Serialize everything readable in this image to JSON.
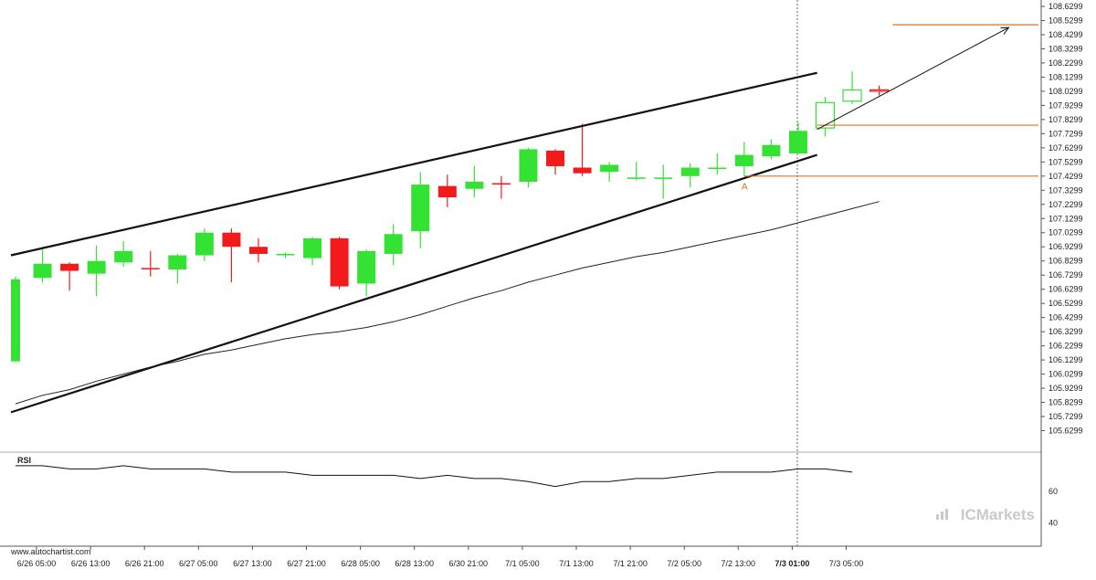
{
  "chart_data": {
    "type": "candlestick",
    "price_axis": {
      "range": [
        105.5299,
        108.6299
      ],
      "ticks": [
        "108.6299",
        "108.5299",
        "108.4299",
        "108.3299",
        "108.2299",
        "108.1299",
        "108.0299",
        "107.9299",
        "107.8299",
        "107.7299",
        "107.6299",
        "107.5299",
        "107.4299",
        "107.3299",
        "107.2299",
        "107.1299",
        "107.0299",
        "106.9299",
        "106.8299",
        "106.7299",
        "106.6299",
        "106.5299",
        "106.4299",
        "106.3299",
        "106.2299",
        "106.1299",
        "106.0299",
        "105.9299",
        "105.8299",
        "105.7299",
        "105.6299"
      ]
    },
    "time_axis": {
      "labels": [
        "6/26 05:00",
        "6/26 13:00",
        "6/26 21:00",
        "6/27 05:00",
        "6/27 13:00",
        "6/27 21:00",
        "6/28 05:00",
        "6/28 13:00",
        "6/30 21:00",
        "7/1 05:00",
        "7/1 13:00",
        "7/1 21:00",
        "7/2 05:00",
        "7/2 13:00",
        "7/3 01:00",
        "7/3 05:00"
      ],
      "highlight_label": "7/3 01:00"
    },
    "candles": [
      {
        "o": 106.12,
        "h": 106.72,
        "l": 106.12,
        "c": 106.7,
        "color": "green"
      },
      {
        "o": 106.71,
        "h": 106.93,
        "l": 106.68,
        "c": 106.81,
        "color": "green"
      },
      {
        "o": 106.81,
        "h": 106.82,
        "l": 106.62,
        "c": 106.76,
        "color": "red"
      },
      {
        "o": 106.74,
        "h": 106.94,
        "l": 106.58,
        "c": 106.83,
        "color": "green"
      },
      {
        "o": 106.82,
        "h": 106.97,
        "l": 106.79,
        "c": 106.9,
        "color": "green"
      },
      {
        "o": 106.78,
        "h": 106.9,
        "l": 106.72,
        "c": 106.78,
        "color": "red"
      },
      {
        "o": 106.77,
        "h": 106.88,
        "l": 106.67,
        "c": 106.87,
        "color": "green"
      },
      {
        "o": 106.87,
        "h": 107.06,
        "l": 106.83,
        "c": 107.03,
        "color": "green"
      },
      {
        "o": 107.03,
        "h": 107.06,
        "l": 106.68,
        "c": 106.93,
        "color": "red"
      },
      {
        "o": 106.93,
        "h": 106.99,
        "l": 106.82,
        "c": 106.88,
        "color": "red"
      },
      {
        "o": 106.87,
        "h": 106.89,
        "l": 106.85,
        "c": 106.88,
        "color": "green"
      },
      {
        "o": 106.85,
        "h": 107.0,
        "l": 106.8,
        "c": 106.99,
        "color": "green"
      },
      {
        "o": 106.99,
        "h": 107.0,
        "l": 106.63,
        "c": 106.65,
        "color": "red"
      },
      {
        "o": 106.67,
        "h": 106.91,
        "l": 106.58,
        "c": 106.9,
        "color": "green"
      },
      {
        "o": 106.88,
        "h": 107.09,
        "l": 106.8,
        "c": 107.02,
        "color": "green"
      },
      {
        "o": 107.04,
        "h": 107.46,
        "l": 106.92,
        "c": 107.37,
        "color": "green"
      },
      {
        "o": 107.36,
        "h": 107.44,
        "l": 107.21,
        "c": 107.28,
        "color": "red"
      },
      {
        "o": 107.34,
        "h": 107.5,
        "l": 107.28,
        "c": 107.39,
        "color": "green"
      },
      {
        "o": 107.38,
        "h": 107.43,
        "l": 107.27,
        "c": 107.37,
        "color": "red"
      },
      {
        "o": 107.39,
        "h": 107.63,
        "l": 107.35,
        "c": 107.62,
        "color": "green"
      },
      {
        "o": 107.61,
        "h": 107.62,
        "l": 107.44,
        "c": 107.5,
        "color": "red"
      },
      {
        "o": 107.49,
        "h": 107.8,
        "l": 107.43,
        "c": 107.45,
        "color": "red"
      },
      {
        "o": 107.46,
        "h": 107.53,
        "l": 107.39,
        "c": 107.51,
        "color": "green"
      },
      {
        "o": 107.42,
        "h": 107.53,
        "l": 107.4,
        "c": 107.42,
        "color": "green"
      },
      {
        "o": 107.42,
        "h": 107.51,
        "l": 107.27,
        "c": 107.42,
        "color": "green"
      },
      {
        "o": 107.43,
        "h": 107.52,
        "l": 107.35,
        "c": 107.49,
        "color": "green"
      },
      {
        "o": 107.48,
        "h": 107.59,
        "l": 107.44,
        "c": 107.49,
        "color": "green"
      },
      {
        "o": 107.5,
        "h": 107.67,
        "l": 107.43,
        "c": 107.58,
        "color": "green"
      },
      {
        "o": 107.57,
        "h": 107.69,
        "l": 107.55,
        "c": 107.65,
        "color": "green"
      },
      {
        "o": 107.59,
        "h": 107.81,
        "l": 107.59,
        "c": 107.75,
        "color": "green"
      },
      {
        "o": 107.77,
        "h": 107.99,
        "l": 107.71,
        "c": 107.95,
        "color": "green_hollow"
      },
      {
        "o": 107.96,
        "h": 108.17,
        "l": 107.94,
        "c": 108.04,
        "color": "green_hollow"
      },
      {
        "o": 108.04,
        "h": 108.07,
        "l": 108.0,
        "c": 108.03,
        "color": "red_hollow"
      }
    ],
    "moving_average": [
      105.82,
      105.88,
      105.92,
      105.98,
      106.03,
      106.08,
      106.12,
      106.17,
      106.2,
      106.24,
      106.28,
      106.31,
      106.33,
      106.36,
      106.4,
      106.45,
      106.51,
      106.57,
      106.62,
      106.68,
      106.73,
      106.78,
      106.82,
      106.86,
      106.89,
      106.93,
      106.97,
      107.01,
      107.05,
      107.1,
      107.15,
      107.2,
      107.25
    ],
    "channel": {
      "upper": {
        "from": {
          "bar": 0,
          "price": 106.87
        },
        "to": {
          "bar": 29.7,
          "price": 108.16
        }
      },
      "lower": {
        "from": {
          "bar": 0,
          "price": 105.76
        },
        "to": {
          "bar": 29.7,
          "price": 107.58
        }
      }
    },
    "levels": [
      {
        "price": 108.5,
        "from_bar": 32.5
      },
      {
        "price": 107.79,
        "from_bar": 29.7
      },
      {
        "price": 107.43,
        "from_bar": 27.0
      }
    ],
    "arrow": {
      "from": {
        "bar": 29.7,
        "price": 107.76
      },
      "to": {
        "bar": 36.8,
        "price": 108.48
      }
    },
    "point_label": {
      "text": "A",
      "bar": 27.0,
      "price": 107.36
    },
    "rsi": {
      "label": "RSI",
      "ticks": [
        "60",
        "40"
      ],
      "range": [
        30,
        84
      ],
      "values": [
        76,
        76,
        74,
        74,
        76,
        74,
        74,
        74,
        72,
        72,
        72,
        70,
        70,
        70,
        70,
        68,
        70,
        68,
        68,
        66,
        63,
        66,
        66,
        68,
        68,
        70,
        72,
        72,
        72,
        74,
        74,
        72
      ]
    }
  },
  "watermark": "www.autochartist.com",
  "logo": {
    "brand": "ICMarkets",
    "prefix": "IC",
    "suffix": "Markets"
  },
  "colors": {
    "bull": "#34e234",
    "bear": "#f21a1a",
    "level": "#d2762a",
    "channel": "#111111",
    "ma": "#222222",
    "logo": "#c9c9c9"
  }
}
